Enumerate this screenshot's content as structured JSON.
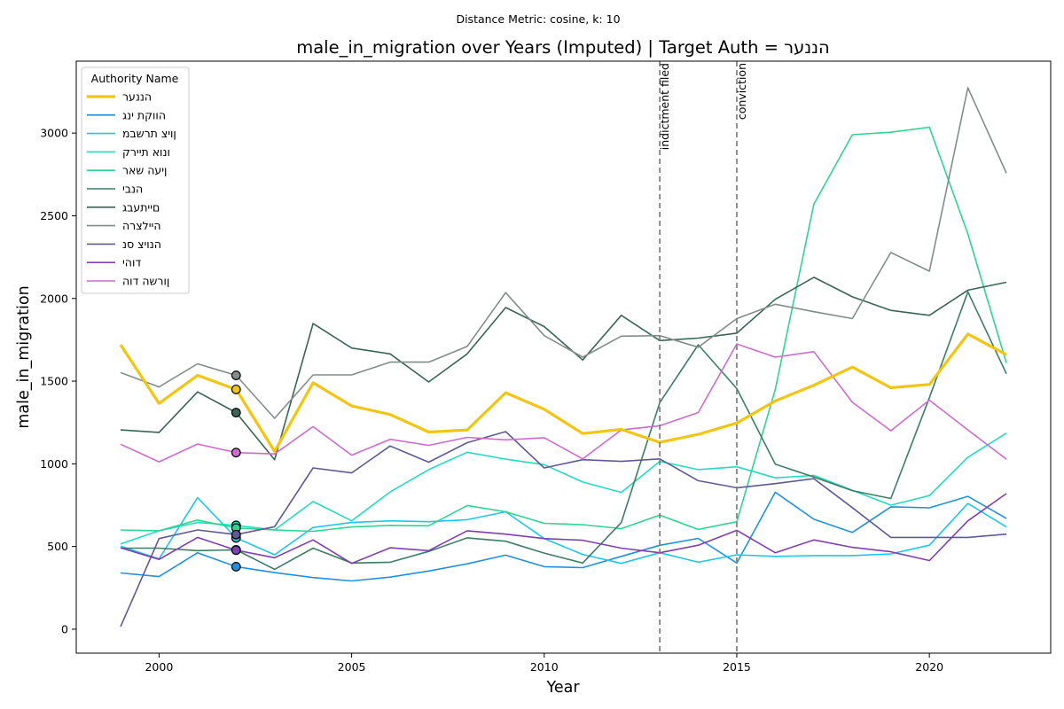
{
  "figure": {
    "suptitle": "Distance Metric: cosine, k: 10"
  },
  "chart_data": {
    "type": "line",
    "title": "male_in_migration over Years (Imputed) | Target Auth = הננער",
    "xlabel": "Year",
    "ylabel": "male_in_migration",
    "xlim": [
      1997.85,
      2023.15
    ],
    "ylim": [
      -145,
      3435
    ],
    "x_ticks": [
      2000,
      2005,
      2010,
      2015,
      2020
    ],
    "y_ticks": [
      0,
      500,
      1000,
      1500,
      2000,
      2500,
      3000
    ],
    "grid": false,
    "legend": {
      "title": "Authority Name",
      "placement": "top-left"
    },
    "vlines": [
      {
        "x": 2013,
        "label": "indictment filed",
        "color": "#777777"
      },
      {
        "x": 2015,
        "label": "conviction",
        "color": "#777777"
      }
    ],
    "x": [
      1999,
      2000,
      2001,
      2002,
      2003,
      2004,
      2005,
      2006,
      2007,
      2008,
      2009,
      2010,
      2011,
      2012,
      2013,
      2014,
      2015,
      2016,
      2017,
      2018,
      2019,
      2020,
      2021,
      2022
    ],
    "marker_year": 2002,
    "series": [
      {
        "name": "הננער",
        "color": "#f2c511",
        "width": 3.2,
        "values": [
          1720,
          1365,
          1535,
          1450,
          1075,
          1490,
          1350,
          1298,
          1192,
          1205,
          1430,
          1330,
          1183,
          1208,
          1130,
          1178,
          1247,
          1380,
          1475,
          1585,
          1460,
          1480,
          1785,
          1660
        ]
      },
      {
        "name": "הווקת ינג",
        "color": "#2090e0",
        "width": 1.6,
        "values": [
          340,
          318,
          462,
          378,
          342,
          312,
          292,
          315,
          352,
          395,
          448,
          378,
          372,
          440,
          507,
          549,
          400,
          828,
          665,
          585,
          740,
          734,
          803,
          670
        ]
      },
      {
        "name": "ןויצ תרשבמ",
        "color": "#1ec5ee",
        "width": 1.6,
        "values": [
          502,
          425,
          795,
          552,
          450,
          615,
          645,
          655,
          650,
          662,
          710,
          548,
          452,
          398,
          462,
          405,
          450,
          440,
          445,
          445,
          455,
          508,
          760,
          618
        ]
      },
      {
        "name": "ונוא תיירק",
        "color": "#22dcc0",
        "width": 1.6,
        "values": [
          515,
          595,
          645,
          628,
          600,
          772,
          655,
          830,
          965,
          1070,
          1028,
          995,
          890,
          827,
          1015,
          965,
          982,
          915,
          930,
          840,
          750,
          808,
          1040,
          1185
        ]
      },
      {
        "name": "ןיעה שאר",
        "color": "#2ed490",
        "width": 1.6,
        "values": [
          600,
          595,
          660,
          612,
          600,
          592,
          618,
          628,
          625,
          748,
          710,
          640,
          632,
          608,
          690,
          603,
          650,
          1450,
          2570,
          2990,
          3005,
          3035,
          2390,
          1610
        ]
      },
      {
        "name": "הנבי",
        "color": "#3d7d65",
        "width": 1.6,
        "values": [
          490,
          490,
          475,
          480,
          362,
          490,
          400,
          405,
          470,
          552,
          532,
          460,
          400,
          645,
          1370,
          1720,
          1455,
          998,
          920,
          838,
          790,
          1400,
          2040,
          1545
        ]
      },
      {
        "name": "םייתעבג",
        "color": "#3a6555",
        "width": 1.6,
        "values": [
          1205,
          1190,
          1435,
          1310,
          1025,
          1848,
          1700,
          1665,
          1495,
          1665,
          1945,
          1830,
          1628,
          1898,
          1745,
          1760,
          1790,
          1995,
          2128,
          2010,
          1928,
          1898,
          2050,
          2098
        ]
      },
      {
        "name": "היילצרה",
        "color": "#838d88",
        "width": 1.6,
        "values": [
          1552,
          1465,
          1605,
          1535,
          1275,
          1538,
          1538,
          1615,
          1615,
          1710,
          2035,
          1775,
          1645,
          1772,
          1775,
          1705,
          1878,
          1965,
          1920,
          1878,
          2278,
          2165,
          3275,
          2758
        ]
      },
      {
        "name": "הנויצ סנ",
        "color": "#5f5a95",
        "width": 1.6,
        "values": [
          15,
          548,
          600,
          572,
          620,
          975,
          945,
          1108,
          1010,
          1128,
          1195,
          975,
          1025,
          1015,
          1030,
          898,
          855,
          880,
          910,
          735,
          555,
          555,
          555,
          575
        ]
      },
      {
        "name": "דוהי",
        "color": "#7e3fb0",
        "width": 1.6,
        "values": [
          492,
          422,
          555,
          478,
          432,
          540,
          398,
          492,
          475,
          595,
          575,
          548,
          538,
          490,
          462,
          508,
          598,
          462,
          540,
          495,
          468,
          415,
          655,
          820
        ]
      },
      {
        "name": "ןורשה דוה",
        "color": "#cc6ccc",
        "width": 1.6,
        "values": [
          1118,
          1012,
          1120,
          1068,
          1060,
          1225,
          1052,
          1148,
          1112,
          1160,
          1145,
          1158,
          1030,
          1205,
          1230,
          1310,
          1725,
          1645,
          1678,
          1372,
          1200,
          1385,
          1205,
          1028
        ]
      }
    ]
  }
}
